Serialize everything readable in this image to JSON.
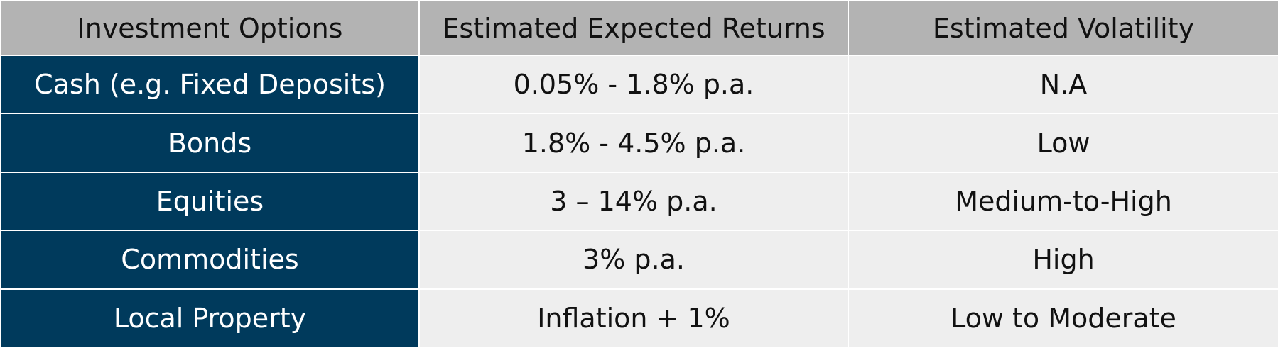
{
  "table": {
    "headers": [
      "Investment Options",
      "Estimated Expected Returns",
      "Estimated Volatility"
    ],
    "rows": [
      {
        "option": "Cash (e.g. Fixed Deposits)",
        "returns": "0.05% - 1.8% p.a.",
        "volatility": "N.A"
      },
      {
        "option": "Bonds",
        "returns": "1.8% - 4.5% p.a.",
        "volatility": "Low"
      },
      {
        "option": "Equities",
        "returns": "3 – 14% p.a.",
        "volatility": "Medium-to-High"
      },
      {
        "option": "Commodities",
        "returns": "3% p.a.",
        "volatility": "High"
      },
      {
        "option": "Local Property",
        "returns": "Inflation + 1%",
        "volatility": "Low to Moderate"
      }
    ]
  },
  "colors": {
    "header_bg": "#b3b3b3",
    "label_bg": "#003a5c",
    "value_bg": "#eeeeee"
  }
}
